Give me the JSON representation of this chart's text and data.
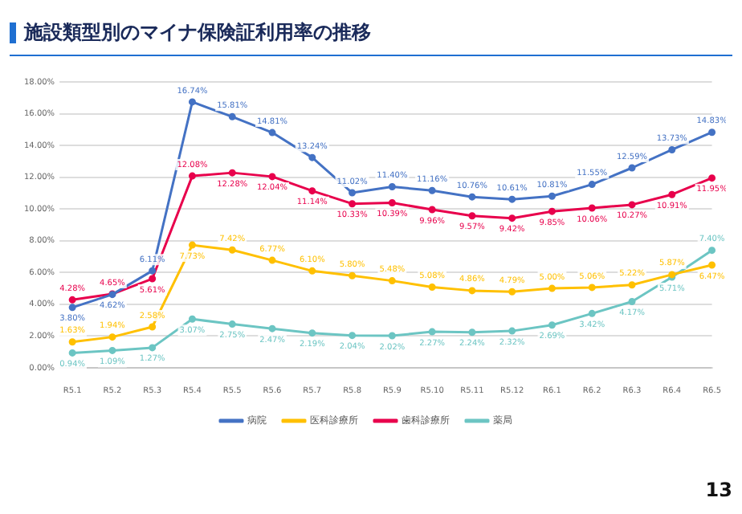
{
  "chart_data": {
    "type": "line",
    "title": "施設類型別のマイナ保険証利用率の推移",
    "categories": [
      "R5.1",
      "R5.2",
      "R5.3",
      "R5.4",
      "R5.5",
      "R5.6",
      "R5.7",
      "R5.8",
      "R5.9",
      "R5.10",
      "R5.11",
      "R5.12",
      "R6.1",
      "R6.2",
      "R6.3",
      "R6.4",
      "R6.5"
    ],
    "series": [
      {
        "name": "病院",
        "color": "#4472c4",
        "values": [
          3.8,
          4.62,
          6.11,
          16.74,
          15.81,
          14.81,
          13.24,
          11.02,
          11.4,
          11.16,
          10.76,
          10.61,
          10.81,
          11.55,
          12.59,
          13.73,
          14.83
        ],
        "value_labels": [
          "3.80%",
          "4.62%",
          "6.11%",
          "16.74%",
          "15.81%",
          "14.81%",
          "13.24%",
          "11.02%",
          "11.40%",
          "11.16%",
          "10.76%",
          "10.61%",
          "10.81%",
          "11.55%",
          "12.59%",
          "13.73%",
          "14.83%"
        ]
      },
      {
        "name": "医科診療所",
        "color": "#ffc000",
        "values": [
          1.63,
          1.94,
          2.58,
          7.73,
          7.42,
          6.77,
          6.1,
          5.8,
          5.48,
          5.08,
          4.86,
          4.79,
          5.0,
          5.06,
          5.22,
          5.87,
          6.47
        ],
        "value_labels": [
          "1.63%",
          "1.94%",
          "2.58%",
          "7.73%",
          "7.42%",
          "6.77%",
          "6.10%",
          "5.80%",
          "5.48%",
          "5.08%",
          "4.86%",
          "4.79%",
          "5.00%",
          "5.06%",
          "5.22%",
          "5.87%",
          "6.47%"
        ]
      },
      {
        "name": "歯科診療所",
        "color": "#e8004c",
        "values": [
          4.28,
          4.65,
          5.61,
          12.08,
          12.28,
          12.04,
          11.14,
          10.33,
          10.39,
          9.96,
          9.57,
          9.42,
          9.85,
          10.06,
          10.27,
          10.91,
          11.95
        ],
        "value_labels": [
          "4.28%",
          "4.65%",
          "5.61%",
          "12.08%",
          "12.28%",
          "12.04%",
          "11.14%",
          "10.33%",
          "10.39%",
          "9.96%",
          "9.57%",
          "9.42%",
          "9.85%",
          "10.06%",
          "10.27%",
          "10.91%",
          "11.95%"
        ]
      },
      {
        "name": "薬局",
        "color": "#6cc5c3",
        "values": [
          0.94,
          1.09,
          1.27,
          3.07,
          2.75,
          2.47,
          2.19,
          2.04,
          2.02,
          2.27,
          2.24,
          2.32,
          2.69,
          3.42,
          4.17,
          5.71,
          7.4
        ],
        "value_labels": [
          "0.94%",
          "1.09%",
          "1.27%",
          "3.07%",
          "2.75%",
          "2.47%",
          "2.19%",
          "2.04%",
          "2.02%",
          "2.27%",
          "2.24%",
          "2.32%",
          "2.69%",
          "3.42%",
          "4.17%",
          "5.71%",
          "7.40%"
        ]
      }
    ],
    "ylim": [
      0,
      18
    ],
    "yticks": [
      {
        "value": 0,
        "label": "0.00%"
      },
      {
        "value": 2,
        "label": "2.00%"
      },
      {
        "value": 4,
        "label": "4.00%"
      },
      {
        "value": 6,
        "label": "6.00%"
      },
      {
        "value": 8,
        "label": "8.00%"
      },
      {
        "value": 10,
        "label": "10.00%"
      },
      {
        "value": 12,
        "label": "12.00%"
      },
      {
        "value": 14,
        "label": "14.00%"
      },
      {
        "value": 16,
        "label": "16.00%"
      },
      {
        "value": 18,
        "label": "18.00%"
      }
    ],
    "grid": "y",
    "legend": "bottom",
    "marker": "circle",
    "line_style": "solid",
    "annotations": [
      "13"
    ]
  }
}
